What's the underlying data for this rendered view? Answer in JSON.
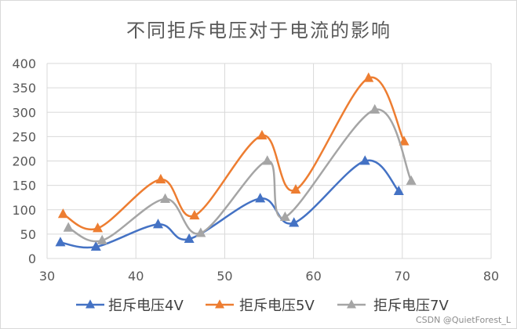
{
  "chart_data": {
    "type": "scatter",
    "title": "不同拒斥电压对于电流的影响",
    "xlabel": "",
    "ylabel": "",
    "xlim": [
      30,
      80
    ],
    "ylim": [
      0,
      400
    ],
    "x_ticks": [
      30,
      40,
      50,
      60,
      70,
      80
    ],
    "y_ticks": [
      0,
      50,
      100,
      150,
      200,
      250,
      300,
      350,
      400
    ],
    "grid": true,
    "legend_position": "bottom",
    "series": [
      {
        "name": "拒斥电压4V",
        "color": "#4472C4",
        "points": [
          [
            31.5,
            33
          ],
          [
            35.5,
            24
          ],
          [
            42.5,
            70
          ],
          [
            46,
            40
          ],
          [
            54,
            123
          ],
          [
            57.8,
            73
          ],
          [
            65.8,
            200
          ],
          [
            69.6,
            138
          ]
        ]
      },
      {
        "name": "拒斥电压5V",
        "color": "#ED7D31",
        "points": [
          [
            31.8,
            91
          ],
          [
            35.7,
            62
          ],
          [
            42.8,
            162
          ],
          [
            46.6,
            88
          ],
          [
            54.2,
            252
          ],
          [
            58,
            141
          ],
          [
            66.2,
            370
          ],
          [
            70.2,
            240
          ]
        ]
      },
      {
        "name": "拒斥电压7V",
        "color": "#A5A5A5",
        "points": [
          [
            32.4,
            63
          ],
          [
            36.2,
            37
          ],
          [
            43.3,
            122
          ],
          [
            47.3,
            52
          ],
          [
            54.8,
            200
          ],
          [
            56.8,
            85
          ],
          [
            66.9,
            305
          ],
          [
            71,
            159
          ]
        ]
      }
    ]
  },
  "watermark": "CSDN @QuietForest_L"
}
